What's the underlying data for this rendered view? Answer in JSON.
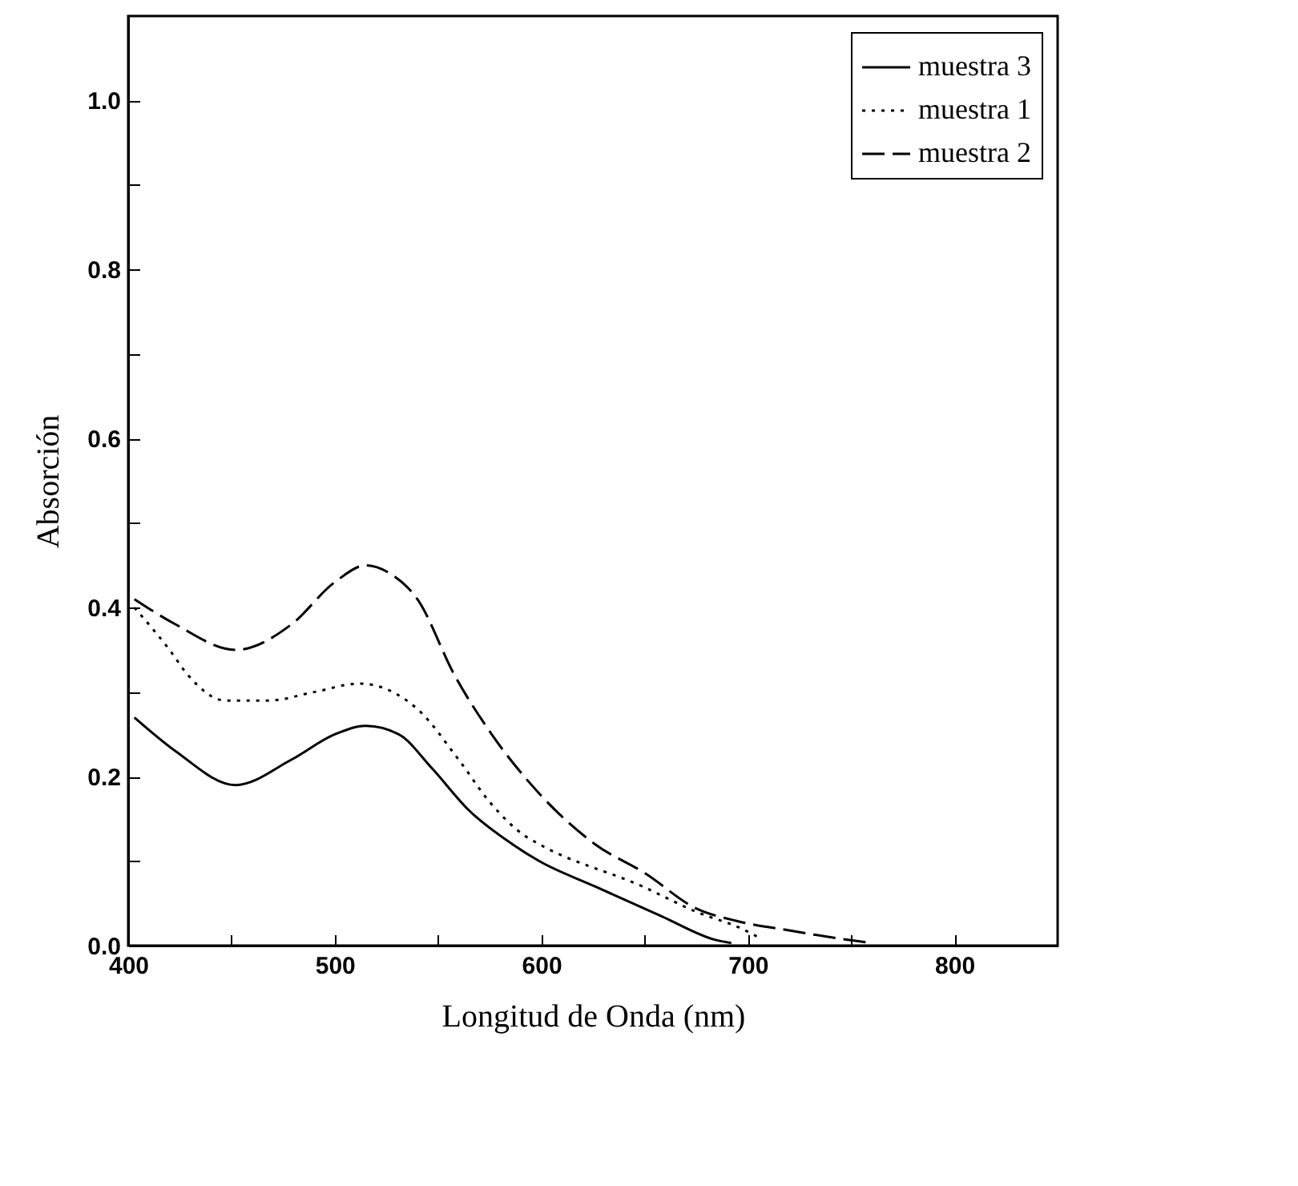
{
  "chart_data": {
    "type": "line",
    "xlabel": "Longitud de Onda (nm)",
    "ylabel": "Absorción",
    "xlim": [
      400,
      850
    ],
    "ylim": [
      0,
      1.1
    ],
    "xticks": [
      400,
      {
        "value": 450,
        "label": null
      },
      500,
      {
        "value": 550,
        "label": null
      },
      600,
      {
        "value": 650,
        "label": null
      },
      700,
      {
        "value": 750,
        "label": null
      },
      800
    ],
    "yticks": [
      {
        "value": 0,
        "label": "0.0"
      },
      {
        "value": 0.1,
        "label": null
      },
      {
        "value": 0.2,
        "label": "0.2"
      },
      {
        "value": 0.3,
        "label": null
      },
      {
        "value": 0.4,
        "label": "0.4"
      },
      {
        "value": 0.5,
        "label": null
      },
      {
        "value": 0.6,
        "label": "0.6"
      },
      {
        "value": 0.7,
        "label": null
      },
      {
        "value": 0.8,
        "label": "0.8"
      },
      {
        "value": 0.9,
        "label": null
      },
      {
        "value": 1,
        "label": "1.0"
      }
    ],
    "grid": false,
    "legend": "top right",
    "marker": "none",
    "series": [
      {
        "name": "muestra 3",
        "color": "#000000",
        "line_style": "solid",
        "x": [
          403,
          423,
          452,
          479,
          500,
          515,
          531,
          547,
          565,
          586,
          599,
          626,
          658,
          684,
          692
        ],
        "values": [
          0.27,
          0.23,
          0.19,
          0.22,
          0.25,
          0.26,
          0.25,
          0.21,
          0.16,
          0.12,
          0.1,
          0.07,
          0.035,
          0.007,
          0.003
        ]
      },
      {
        "name": "muestra 1",
        "color": "#000000",
        "line_style": "dotted",
        "x": [
          403,
          420,
          429,
          447,
          468,
          490,
          512,
          540,
          560,
          575,
          592,
          599,
          649,
          675,
          697,
          705
        ],
        "values": [
          0.4,
          0.35,
          0.32,
          0.29,
          0.29,
          0.3,
          0.31,
          0.28,
          0.22,
          0.17,
          0.13,
          0.12,
          0.07,
          0.04,
          0.02,
          0.01
        ]
      },
      {
        "name": "muestra 2",
        "color": "#000000",
        "line_style": "dashed",
        "x": [
          403,
          423,
          452,
          479,
          500,
          515,
          527,
          540,
          558,
          576,
          599,
          626,
          650,
          675,
          695,
          720,
          745,
          760
        ],
        "values": [
          0.41,
          0.38,
          0.35,
          0.38,
          0.43,
          0.45,
          0.44,
          0.41,
          0.32,
          0.25,
          0.18,
          0.12,
          0.086,
          0.044,
          0.029,
          0.018,
          0.008,
          0.003
        ]
      }
    ]
  }
}
